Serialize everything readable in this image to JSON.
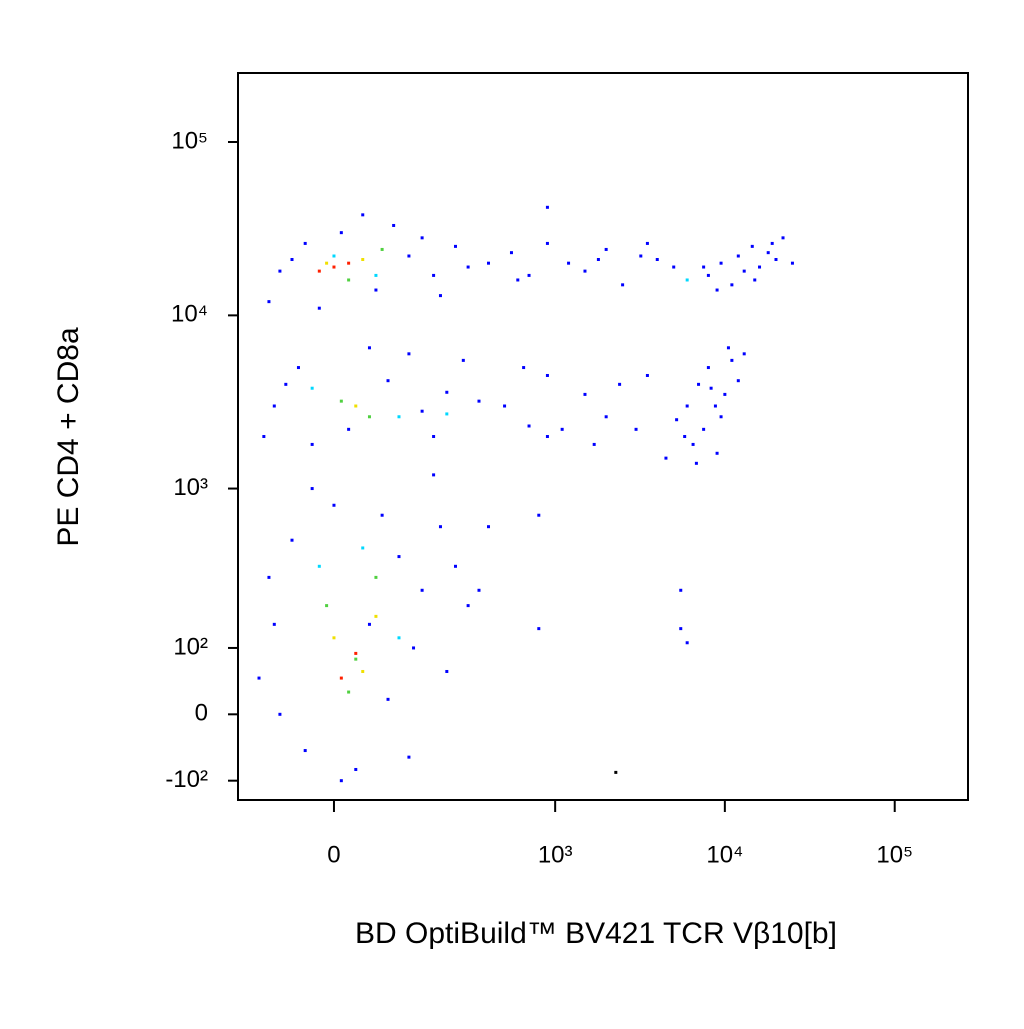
{
  "chart_data": {
    "type": "scatter",
    "x_label": "BD OptiBuild™ BV421 TCR Vβ10[b]",
    "y_label": "PE CD4 + CD8a",
    "scale": "biexponential",
    "xlim": [
      -170,
      270000
    ],
    "ylim": [
      -140,
      250000
    ],
    "xticks": [
      0,
      {
        "value": 1000,
        "label": "10³"
      },
      {
        "value": 10000,
        "label": "10⁴"
      },
      {
        "value": 100000,
        "label": "10⁵"
      }
    ],
    "yticks": [
      {
        "value": -100,
        "label": "-10²"
      },
      0,
      {
        "value": 100,
        "label": "10²"
      },
      {
        "value": 1000,
        "label": "10³"
      },
      {
        "value": 10000,
        "label": "10⁴"
      },
      {
        "value": 100000,
        "label": "10⁵"
      }
    ],
    "series": [
      {
        "color": "#0000ff",
        "x": [
          -80,
          -40,
          10,
          60,
          120,
          180,
          -100,
          250,
          90,
          -20,
          200,
          150,
          -60,
          40,
          300,
          400,
          550,
          700,
          900,
          1200,
          1500,
          2000,
          2500,
          3200,
          4000,
          900,
          600,
          1800,
          3500,
          5000,
          8000,
          9500,
          11000,
          12000,
          13000,
          14500,
          16000,
          18000,
          20000,
          22000,
          9000,
          15000,
          25000,
          7500,
          19000,
          -90,
          -50,
          20,
          80,
          150,
          220,
          -110,
          280,
          50,
          -30,
          180,
          120,
          -70,
          350,
          500,
          700,
          900,
          1100,
          1500,
          2000,
          2400,
          3000,
          3500,
          1700,
          900,
          650,
          4500,
          5200,
          6000,
          6500,
          7000,
          7500,
          8000,
          8800,
          9500,
          10000,
          11000,
          12000,
          6800,
          9000,
          10500,
          13000,
          5800,
          8300,
          -100,
          -60,
          0,
          50,
          100,
          150,
          200,
          -120,
          -80,
          -40,
          30,
          80,
          130,
          180,
          250,
          300,
          -30,
          70,
          -90,
          220,
          10,
          120,
          800,
          800,
          5500,
          5500,
          6000,
          350,
          400
        ],
        "y": [
          18000,
          26000,
          30000,
          14000,
          22000,
          17000,
          12000,
          25000,
          33000,
          11000,
          13000,
          28000,
          21000,
          38000,
          19000,
          20000,
          23000,
          17000,
          26000,
          20000,
          18000,
          24000,
          15000,
          22000,
          21000,
          42000,
          16000,
          21000,
          26000,
          19000,
          17000,
          20000,
          15000,
          22000,
          18000,
          25000,
          19000,
          23000,
          21000,
          28000,
          14000,
          16000,
          20000,
          19000,
          26000,
          3000,
          5000,
          2200,
          4200,
          2800,
          3600,
          2000,
          5500,
          6500,
          1800,
          2000,
          6000,
          4000,
          3200,
          3000,
          2300,
          4500,
          2200,
          3500,
          2600,
          4000,
          2200,
          4500,
          1800,
          2000,
          5000,
          1500,
          2500,
          3000,
          1800,
          4000,
          2200,
          5000,
          3000,
          2600,
          3500,
          5500,
          4200,
          1400,
          1600,
          6500,
          6000,
          2000,
          3800,
          300,
          500,
          800,
          150,
          400,
          250,
          600,
          50,
          0,
          -50,
          -80,
          20,
          100,
          1200,
          350,
          200,
          1000,
          700,
          150,
          60,
          -100,
          -60,
          700,
          140,
          250,
          140,
          110,
          250,
          600
        ]
      },
      {
        "color": "#00d8ff",
        "x": [
          0,
          60,
          -30,
          100,
          40,
          -20,
          100,
          220,
          6000
        ],
        "y": [
          22000,
          17000,
          3800,
          2600,
          450,
          350,
          120,
          2700,
          16000
        ]
      },
      {
        "color": "#50d040",
        "x": [
          20,
          70,
          10,
          50,
          -10,
          60,
          30,
          20
        ],
        "y": [
          16000,
          24000,
          3200,
          2600,
          200,
          300,
          80,
          30
        ]
      },
      {
        "color": "#f0e000",
        "x": [
          -10,
          40,
          30,
          0,
          40,
          60
        ],
        "y": [
          20000,
          21000,
          3000,
          120,
          60,
          170
        ]
      },
      {
        "color": "#ff2000",
        "x": [
          0,
          20,
          -20,
          10,
          30
        ],
        "y": [
          19000,
          20000,
          18000,
          50,
          90
        ]
      },
      {
        "color": "#000000",
        "x": [
          2280
        ],
        "y": [
          -85
        ]
      }
    ]
  }
}
